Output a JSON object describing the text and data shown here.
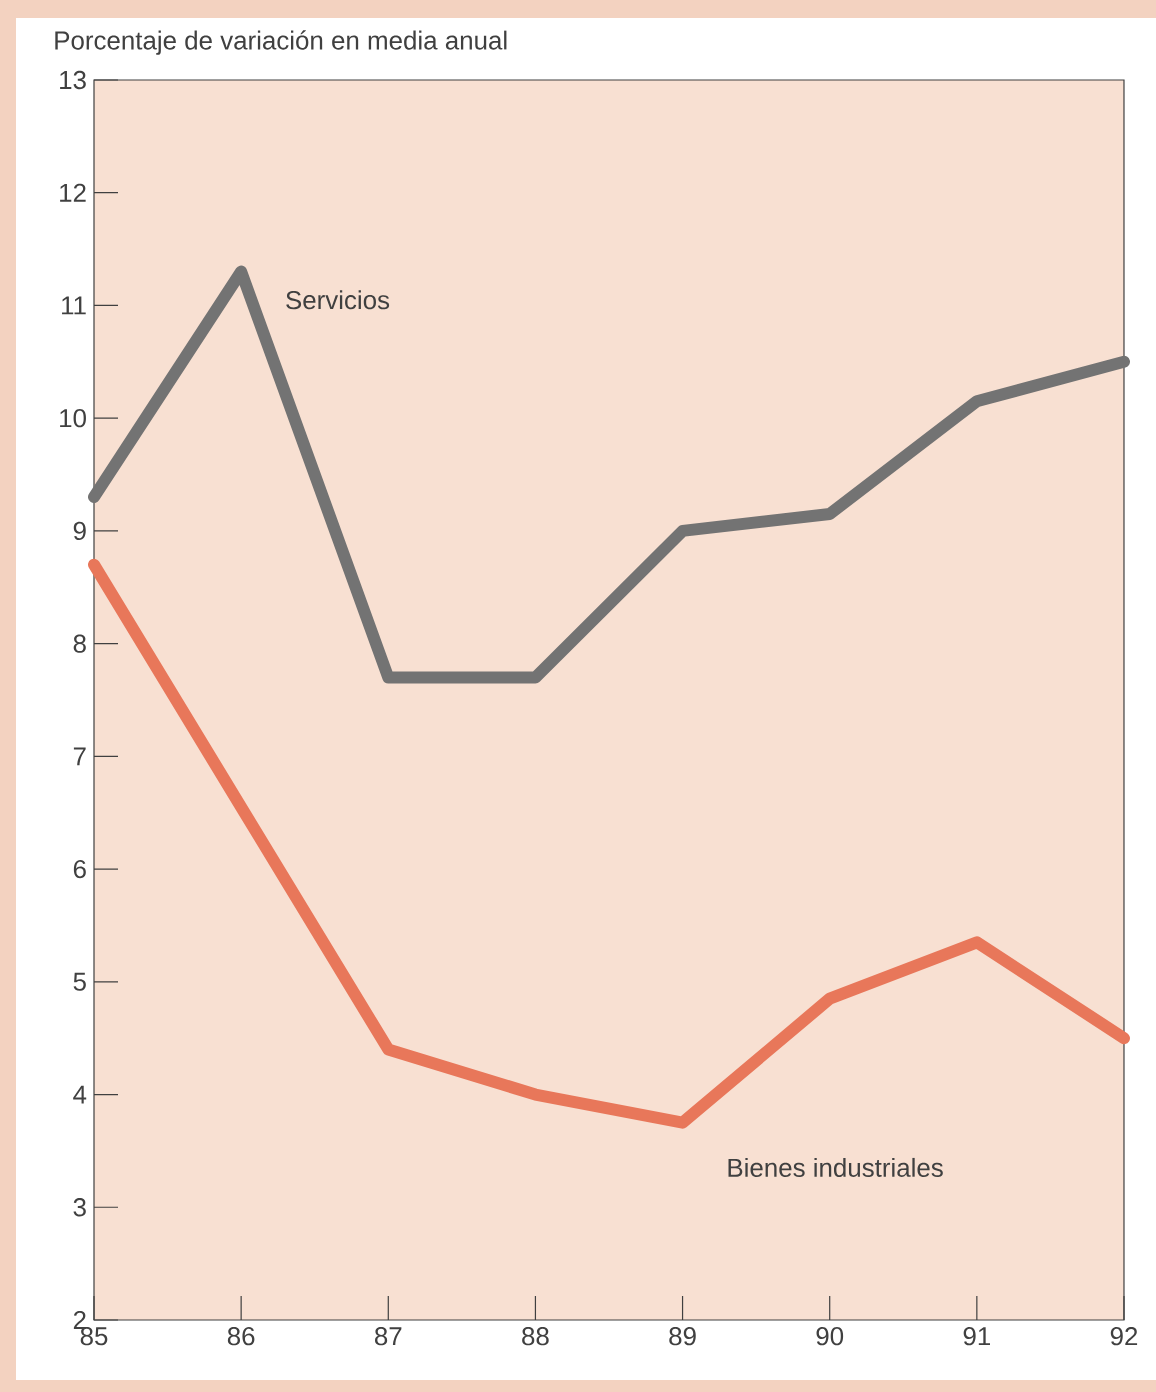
{
  "chart_data": {
    "type": "line",
    "ylabel": "Porcentaje de variación en media anual",
    "categories": [
      "85",
      "86",
      "87",
      "88",
      "89",
      "90",
      "91",
      "92"
    ],
    "series": [
      {
        "name": "Servicios",
        "color": "#737373",
        "values": [
          9.3,
          11.3,
          7.7,
          7.7,
          9.0,
          9.15,
          10.15,
          10.5
        ]
      },
      {
        "name": "Bienes industriales",
        "color": "#e8775a",
        "values": [
          8.7,
          6.55,
          4.4,
          4.0,
          3.75,
          4.85,
          5.35,
          4.5
        ]
      }
    ],
    "ylim": [
      2,
      13
    ],
    "yticks": [
      2,
      3,
      4,
      5,
      6,
      7,
      8,
      9,
      10,
      11,
      12,
      13
    ],
    "line_style": "solid",
    "marker": "none"
  }
}
